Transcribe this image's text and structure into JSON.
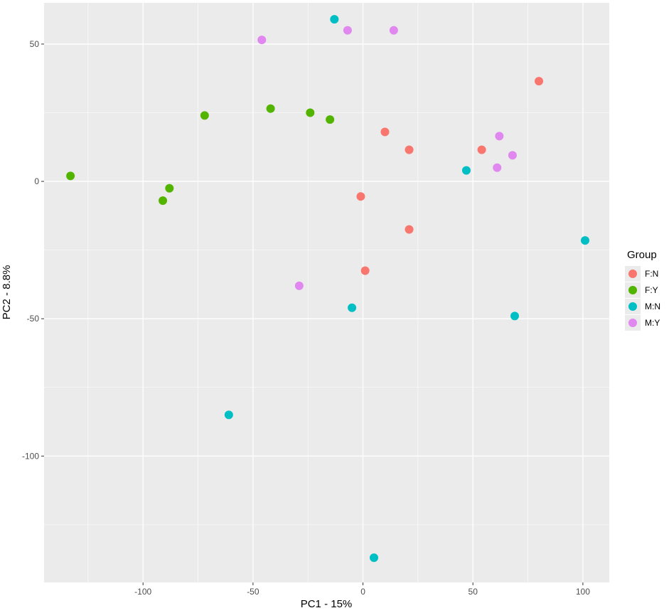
{
  "chart_data": {
    "type": "scatter",
    "xlabel": "PC1 - 15%",
    "ylabel": "PC2 - 8.8%",
    "xlim": [
      -145,
      112
    ],
    "ylim": [
      -146,
      65
    ],
    "x_ticks": [
      -100,
      -50,
      0,
      50,
      100
    ],
    "y_ticks": [
      50,
      0,
      -50,
      -100
    ],
    "grid": true,
    "legend": {
      "title": "Group",
      "position": "right"
    },
    "series": [
      {
        "name": "F:N",
        "color": "#F8766D",
        "points": [
          {
            "x": 80,
            "y": 36.5
          },
          {
            "x": 10,
            "y": 18
          },
          {
            "x": 21,
            "y": 11.5
          },
          {
            "x": 54,
            "y": 11.5
          },
          {
            "x": -1,
            "y": -5.5
          },
          {
            "x": 21,
            "y": -17.5
          },
          {
            "x": 1,
            "y": -32.5
          }
        ]
      },
      {
        "name": "F:Y",
        "color": "#53B400",
        "points": [
          {
            "x": -133,
            "y": 2
          },
          {
            "x": -88,
            "y": -2.5
          },
          {
            "x": -91,
            "y": -7
          },
          {
            "x": -72,
            "y": 24
          },
          {
            "x": -42,
            "y": 26.5
          },
          {
            "x": -24,
            "y": 25
          },
          {
            "x": -15,
            "y": 22.5
          }
        ]
      },
      {
        "name": "M:N",
        "color": "#00BFC4",
        "points": [
          {
            "x": -13,
            "y": 59
          },
          {
            "x": 47,
            "y": 4
          },
          {
            "x": 101,
            "y": -21.5
          },
          {
            "x": -5,
            "y": -46
          },
          {
            "x": 69,
            "y": -49
          },
          {
            "x": -61,
            "y": -85
          },
          {
            "x": 5,
            "y": -137
          }
        ]
      },
      {
        "name": "M:Y",
        "color": "#E088F0",
        "points": [
          {
            "x": -46,
            "y": 51.5
          },
          {
            "x": -7,
            "y": 55
          },
          {
            "x": 14,
            "y": 55
          },
          {
            "x": 62,
            "y": 16.5
          },
          {
            "x": 68,
            "y": 9.5
          },
          {
            "x": 61,
            "y": 5
          },
          {
            "x": -29,
            "y": -38
          }
        ]
      }
    ]
  }
}
